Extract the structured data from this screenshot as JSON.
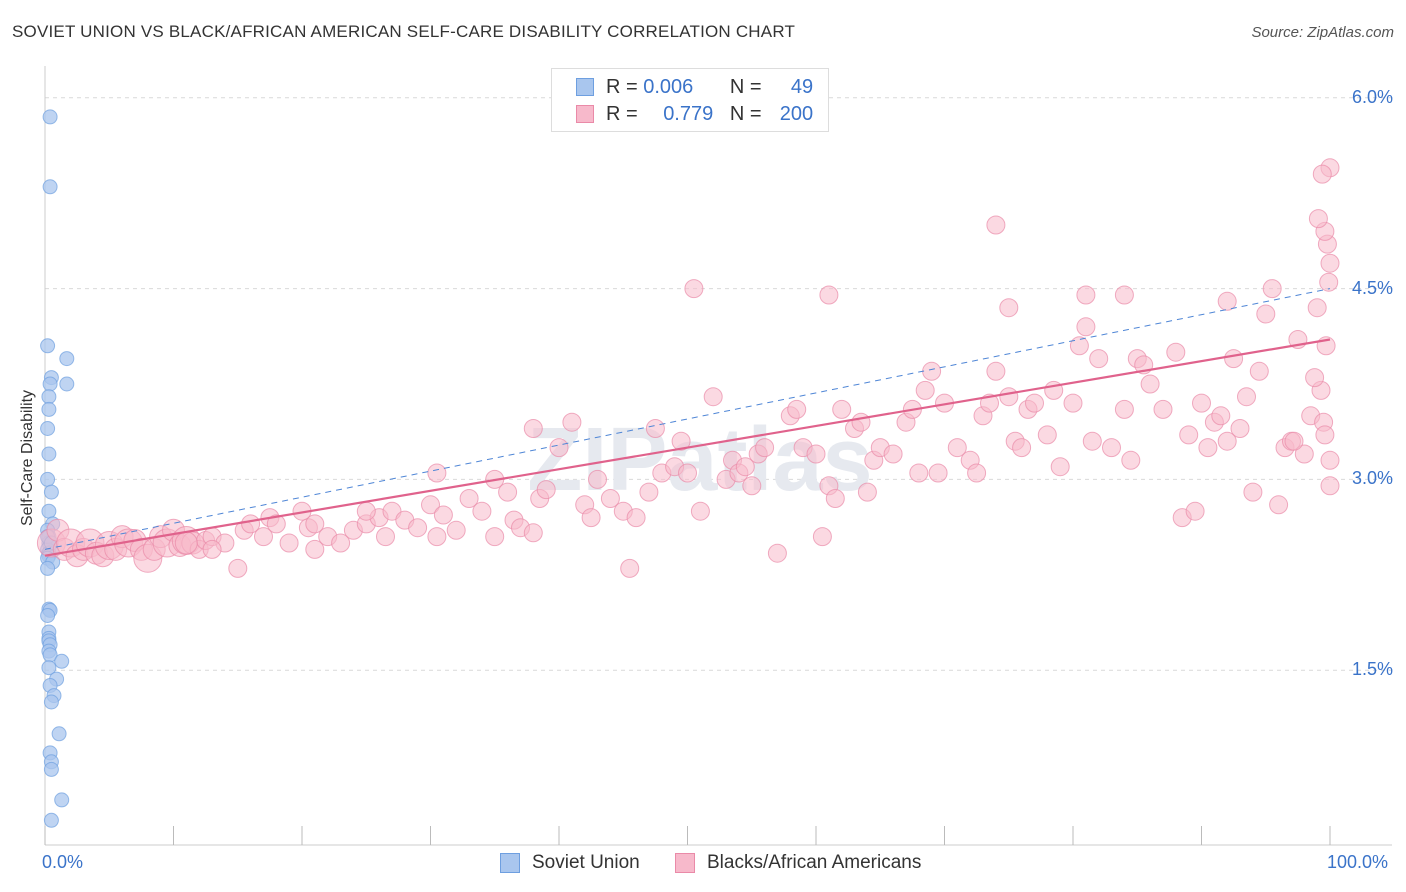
{
  "title": "SOVIET UNION VS BLACK/AFRICAN AMERICAN SELF-CARE DISABILITY CORRELATION CHART",
  "source": "Source: ZipAtlas.com",
  "watermark": "ZIPatlas",
  "legend": {
    "rows": [
      {
        "r_label": "R =",
        "r_value": "0.006",
        "n_label": "N =",
        "n_value": "49",
        "color": "#a9c6ee",
        "border": "#6e9fe0"
      },
      {
        "r_label": "R =",
        "r_value": "0.779",
        "n_label": "N =",
        "n_value": "200",
        "color": "#f7b9cb",
        "border": "#ea8aa8"
      }
    ]
  },
  "bottom_legend": [
    {
      "label": "Soviet Union",
      "color": "#a9c6ee",
      "border": "#6e9fe0"
    },
    {
      "label": "Blacks/African Americans",
      "color": "#f7b9cb",
      "border": "#ea8aa8"
    }
  ],
  "chart_data": {
    "type": "scatter",
    "ylabel": "Self-Care Disability",
    "xlabel": "",
    "xlim": [
      0,
      100
    ],
    "ylim": [
      0,
      6.2
    ],
    "x_tick_labels": [
      "0.0%",
      "100.0%"
    ],
    "y_ticks": [
      1.5,
      3.0,
      4.5,
      6.0
    ],
    "y_tick_labels": [
      "1.5%",
      "3.0%",
      "4.5%",
      "6.0%"
    ],
    "grid": "horizontal dashed",
    "series": [
      {
        "name": "Soviet Union",
        "color": "#6e9fe0",
        "fill": "#a9c6ee",
        "trend": {
          "x0": 0,
          "y0": 2.45,
          "x1": 100,
          "y1": 4.5,
          "style": "dashed"
        },
        "points": [
          [
            0.4,
            5.85
          ],
          [
            0.4,
            5.3
          ],
          [
            0.2,
            4.05
          ],
          [
            1.7,
            3.95
          ],
          [
            0.5,
            3.8
          ],
          [
            0.4,
            3.75
          ],
          [
            1.7,
            3.75
          ],
          [
            0.3,
            3.65
          ],
          [
            0.3,
            3.55
          ],
          [
            0.2,
            3.4
          ],
          [
            0.3,
            3.2
          ],
          [
            0.2,
            3.0
          ],
          [
            0.5,
            2.9
          ],
          [
            0.3,
            2.75
          ],
          [
            0.6,
            2.65
          ],
          [
            0.2,
            2.6
          ],
          [
            0.3,
            2.55
          ],
          [
            0.3,
            2.5
          ],
          [
            0.4,
            2.48
          ],
          [
            0.2,
            2.45
          ],
          [
            0.5,
            2.43
          ],
          [
            0.3,
            2.42
          ],
          [
            0.3,
            2.4
          ],
          [
            0.2,
            2.38
          ],
          [
            0.6,
            2.35
          ],
          [
            0.2,
            2.3
          ],
          [
            0.3,
            1.98
          ],
          [
            0.4,
            1.97
          ],
          [
            0.2,
            1.93
          ],
          [
            0.3,
            1.8
          ],
          [
            0.3,
            1.75
          ],
          [
            0.3,
            1.73
          ],
          [
            0.4,
            1.7
          ],
          [
            0.3,
            1.65
          ],
          [
            0.4,
            1.62
          ],
          [
            1.3,
            1.57
          ],
          [
            0.3,
            1.52
          ],
          [
            0.9,
            1.43
          ],
          [
            0.4,
            1.38
          ],
          [
            0.7,
            1.3
          ],
          [
            0.5,
            1.25
          ],
          [
            1.1,
            1.0
          ],
          [
            0.4,
            0.85
          ],
          [
            0.5,
            0.78
          ],
          [
            0.5,
            0.72
          ],
          [
            1.3,
            0.48
          ],
          [
            0.5,
            0.32
          ],
          [
            0.2,
            2.55
          ],
          [
            0.5,
            2.5
          ]
        ]
      },
      {
        "name": "Blacks/African Americans",
        "color": "#ea8aa8",
        "fill": "#f7b9cb",
        "trend": {
          "x0": 0,
          "y0": 2.4,
          "x1": 100,
          "y1": 4.1,
          "style": "solid"
        },
        "points": [
          [
            0.5,
            2.5
          ],
          [
            1.0,
            2.6
          ],
          [
            1.5,
            2.45
          ],
          [
            2,
            2.5
          ],
          [
            2.5,
            2.4
          ],
          [
            3,
            2.45
          ],
          [
            3.5,
            2.5
          ],
          [
            4,
            2.42
          ],
          [
            4.5,
            2.4
          ],
          [
            5,
            2.48
          ],
          [
            5.5,
            2.45
          ],
          [
            6,
            2.55
          ],
          [
            6.5,
            2.5
          ],
          [
            7,
            2.52
          ],
          [
            7.5,
            2.45
          ],
          [
            8,
            2.38
          ],
          [
            8.5,
            2.45
          ],
          [
            9,
            2.55
          ],
          [
            9.5,
            2.5
          ],
          [
            10,
            2.6
          ],
          [
            10.5,
            2.48
          ],
          [
            11,
            2.52
          ],
          [
            11.5,
            2.5
          ],
          [
            12,
            2.45
          ],
          [
            12.5,
            2.52
          ],
          [
            13,
            2.55
          ],
          [
            14,
            2.5
          ],
          [
            15,
            2.3
          ],
          [
            15.5,
            2.6
          ],
          [
            16,
            2.65
          ],
          [
            17,
            2.55
          ],
          [
            17.5,
            2.7
          ],
          [
            18,
            2.65
          ],
          [
            19,
            2.5
          ],
          [
            20,
            2.75
          ],
          [
            20.5,
            2.62
          ],
          [
            21,
            2.45
          ],
          [
            22,
            2.55
          ],
          [
            23,
            2.5
          ],
          [
            24,
            2.6
          ],
          [
            25,
            2.65
          ],
          [
            26,
            2.7
          ],
          [
            26.5,
            2.55
          ],
          [
            27,
            2.75
          ],
          [
            28,
            2.68
          ],
          [
            29,
            2.62
          ],
          [
            30,
            2.8
          ],
          [
            30.5,
            2.55
          ],
          [
            31,
            2.72
          ],
          [
            32,
            2.6
          ],
          [
            33,
            2.85
          ],
          [
            34,
            2.75
          ],
          [
            35,
            2.55
          ],
          [
            36,
            2.9
          ],
          [
            36.5,
            2.68
          ],
          [
            37,
            2.62
          ],
          [
            38,
            2.58
          ],
          [
            38.5,
            2.85
          ],
          [
            39,
            2.92
          ],
          [
            40,
            3.25
          ],
          [
            41,
            3.45
          ],
          [
            42,
            2.8
          ],
          [
            42.5,
            2.7
          ],
          [
            43,
            3.0
          ],
          [
            44,
            2.85
          ],
          [
            45,
            2.75
          ],
          [
            45.5,
            2.3
          ],
          [
            46,
            2.7
          ],
          [
            47,
            2.9
          ],
          [
            47.5,
            3.4
          ],
          [
            48,
            3.05
          ],
          [
            49,
            3.1
          ],
          [
            49.5,
            3.3
          ],
          [
            50,
            3.05
          ],
          [
            51,
            2.75
          ],
          [
            52,
            3.65
          ],
          [
            53,
            3.0
          ],
          [
            53.5,
            3.15
          ],
          [
            54,
            3.05
          ],
          [
            54.5,
            3.1
          ],
          [
            55,
            2.95
          ],
          [
            55.5,
            3.2
          ],
          [
            56,
            3.25
          ],
          [
            57,
            2.42
          ],
          [
            58,
            3.5
          ],
          [
            58.5,
            3.55
          ],
          [
            59,
            3.25
          ],
          [
            60,
            3.2
          ],
          [
            60.5,
            2.55
          ],
          [
            61,
            2.95
          ],
          [
            61.5,
            2.85
          ],
          [
            62,
            3.55
          ],
          [
            63,
            3.4
          ],
          [
            63.5,
            3.45
          ],
          [
            64,
            2.9
          ],
          [
            64.5,
            3.15
          ],
          [
            65,
            3.25
          ],
          [
            66,
            3.2
          ],
          [
            67,
            3.45
          ],
          [
            67.5,
            3.55
          ],
          [
            68,
            3.05
          ],
          [
            68.5,
            3.7
          ],
          [
            69,
            3.85
          ],
          [
            69.5,
            3.05
          ],
          [
            70,
            3.6
          ],
          [
            71,
            3.25
          ],
          [
            72,
            3.15
          ],
          [
            72.5,
            3.05
          ],
          [
            73,
            3.5
          ],
          [
            73.5,
            3.6
          ],
          [
            74,
            3.85
          ],
          [
            75,
            3.65
          ],
          [
            75.5,
            3.3
          ],
          [
            76,
            3.25
          ],
          [
            76.5,
            3.55
          ],
          [
            77,
            3.6
          ],
          [
            78,
            3.35
          ],
          [
            78.5,
            3.7
          ],
          [
            79,
            3.1
          ],
          [
            80,
            3.6
          ],
          [
            80.5,
            4.05
          ],
          [
            81,
            4.2
          ],
          [
            81.5,
            3.3
          ],
          [
            82,
            3.95
          ],
          [
            83,
            3.25
          ],
          [
            84,
            3.55
          ],
          [
            84.5,
            3.15
          ],
          [
            85,
            3.95
          ],
          [
            85.5,
            3.9
          ],
          [
            86,
            3.75
          ],
          [
            87,
            3.55
          ],
          [
            88,
            4.0
          ],
          [
            88.5,
            2.7
          ],
          [
            89,
            3.35
          ],
          [
            89.5,
            2.75
          ],
          [
            90,
            3.6
          ],
          [
            90.5,
            3.25
          ],
          [
            91,
            3.45
          ],
          [
            91.5,
            3.5
          ],
          [
            92,
            3.3
          ],
          [
            92.5,
            3.95
          ],
          [
            93,
            3.4
          ],
          [
            93.5,
            3.65
          ],
          [
            94,
            2.9
          ],
          [
            94.5,
            3.85
          ],
          [
            95,
            4.3
          ],
          [
            95.5,
            4.5
          ],
          [
            96,
            2.8
          ],
          [
            96.5,
            3.25
          ],
          [
            97,
            3.3
          ],
          [
            97.5,
            4.1
          ],
          [
            98,
            3.2
          ],
          [
            98.5,
            3.5
          ],
          [
            99,
            4.35
          ],
          [
            99.3,
            3.7
          ],
          [
            99.5,
            3.45
          ],
          [
            99.6,
            3.35
          ],
          [
            99.7,
            4.05
          ],
          [
            99.8,
            4.85
          ],
          [
            99.9,
            4.55
          ],
          [
            100,
            4.7
          ],
          [
            100,
            5.45
          ],
          [
            100,
            3.15
          ],
          [
            100,
            2.95
          ],
          [
            99.4,
            5.4
          ],
          [
            99.6,
            4.95
          ],
          [
            99.1,
            5.05
          ],
          [
            98.8,
            3.8
          ],
          [
            97.2,
            3.3
          ],
          [
            92,
            4.4
          ],
          [
            84,
            4.45
          ],
          [
            74,
            5.0
          ],
          [
            81,
            4.45
          ],
          [
            75,
            4.35
          ],
          [
            50.5,
            4.5
          ],
          [
            61,
            4.45
          ],
          [
            38,
            3.4
          ],
          [
            30.5,
            3.05
          ],
          [
            35,
            3.0
          ],
          [
            25,
            2.75
          ],
          [
            21,
            2.65
          ],
          [
            11,
            2.5
          ],
          [
            13,
            2.45
          ]
        ]
      }
    ]
  }
}
